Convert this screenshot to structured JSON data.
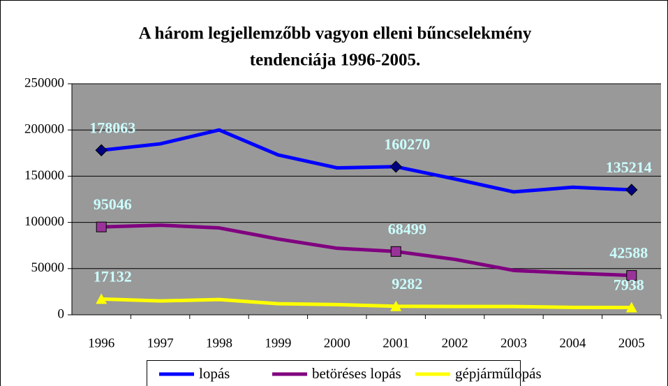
{
  "chart_data": {
    "type": "line",
    "title": [
      "A három legjellemzőbb vagyon elleni bűncselekmény",
      "tendenciája 1996-2005."
    ],
    "categories": [
      "1996",
      "1997",
      "1998",
      "1999",
      "2000",
      "2001",
      "2002",
      "2003",
      "2004",
      "2005"
    ],
    "series": [
      {
        "name": "lopás",
        "color": "#0000ff",
        "marker": "diamond",
        "marker_color": "#000080",
        "values": [
          178063,
          185000,
          200000,
          173000,
          159000,
          160270,
          147000,
          133000,
          138000,
          135214
        ],
        "value_labels": [
          "178063",
          null,
          null,
          null,
          null,
          "160270",
          null,
          null,
          null,
          "135214"
        ]
      },
      {
        "name": "betöréses lopás",
        "color": "#800080",
        "marker": "square",
        "marker_color": "#993399",
        "values": [
          95046,
          97000,
          94000,
          82000,
          72000,
          68499,
          60000,
          48000,
          45000,
          42588
        ],
        "value_labels": [
          "95046",
          null,
          null,
          null,
          null,
          "68499",
          null,
          null,
          null,
          "42588"
        ]
      },
      {
        "name": "gépjárműlopás",
        "color": "#ffff00",
        "marker": "triangle",
        "marker_color": "#ffff00",
        "values": [
          17132,
          15000,
          16500,
          12000,
          11000,
          9282,
          9000,
          9000,
          8000,
          7938
        ],
        "value_labels": [
          "17132",
          null,
          null,
          null,
          null,
          "9282",
          null,
          null,
          null,
          "7938"
        ]
      }
    ],
    "ylim": [
      0,
      250000
    ],
    "yticks": [
      0,
      50000,
      100000,
      150000,
      200000,
      250000
    ],
    "grid": true,
    "legend": "bottom",
    "plot_background": "#999999",
    "label_color": "#ccffff"
  }
}
